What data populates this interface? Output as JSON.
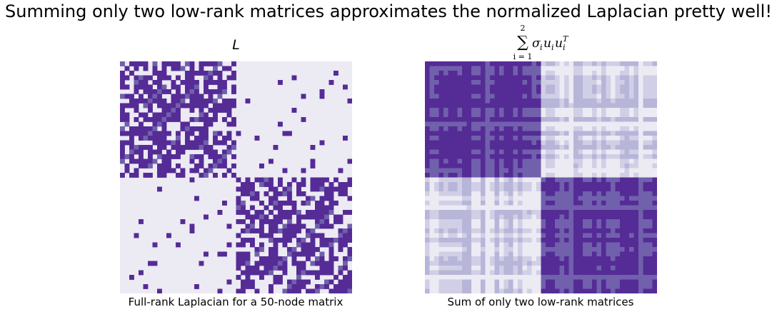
{
  "suptitle": "Summing only two low-rank matrices approximates the normalized Laplacian pretty well!",
  "chart_data": [
    {
      "type": "heatmap",
      "title": "L",
      "xlabel": "Full-rank Laplacian for a 50-node matrix",
      "n": 50,
      "blocks": 2,
      "colors": {
        "low": "#eceaf3",
        "mid": "#7160ac",
        "high": "#552b96"
      },
      "within_block_density": 0.62,
      "between_block_density": 0.05
    },
    {
      "type": "heatmap",
      "title": "Σ_{i=1}^{2} σ_i u_i u_i^T",
      "title_parts": {
        "sum": "∑",
        "upper": "2",
        "lower": "i = 1",
        "sigma": "σ",
        "u": "u",
        "sub": "i",
        "sup": "T"
      },
      "xlabel": "Sum of only two low-rank matrices",
      "n": 50,
      "blocks": 2,
      "colors": {
        "low": "#eceaf3",
        "mid": "#7160ac",
        "high": "#552b96",
        "faint": "#d0cfe6",
        "faint2": "#b7b5d8"
      }
    }
  ]
}
